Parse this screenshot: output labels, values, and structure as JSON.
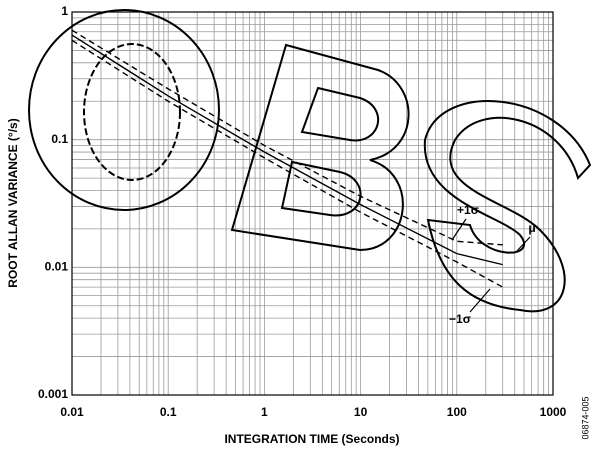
{
  "chart_data": {
    "type": "line",
    "xlabel": "INTEGRATION TIME (Seconds)",
    "ylabel": "ROOT ALLAN VARIANCE (°/s)",
    "figure_code": "06874-005",
    "x": [
      0.01,
      0.1,
      1,
      10,
      100,
      300
    ],
    "series": [
      {
        "name": "+1σ",
        "color": "#000",
        "dash": "6,4",
        "values": [
          0.72,
          0.25,
          0.09,
          0.036,
          0.016,
          0.015
        ]
      },
      {
        "name": "μ",
        "color": "#000",
        "dash": "none",
        "values": [
          0.66,
          0.22,
          0.08,
          0.031,
          0.0128,
          0.0105
        ]
      },
      {
        "name": "−1σ",
        "color": "#000",
        "dash": "6,4",
        "values": [
          0.6,
          0.2,
          0.072,
          0.027,
          0.011,
          0.007
        ]
      }
    ],
    "xscale": "log",
    "yscale": "log",
    "xlim": [
      0.01,
      1000
    ],
    "ylim": [
      0.001,
      1
    ],
    "xticks": [
      0.01,
      0.1,
      1,
      10,
      100,
      1000
    ],
    "yticks": [
      0.001,
      0.01,
      0.1,
      1
    ],
    "grid": true,
    "minor_grid": true
  }
}
